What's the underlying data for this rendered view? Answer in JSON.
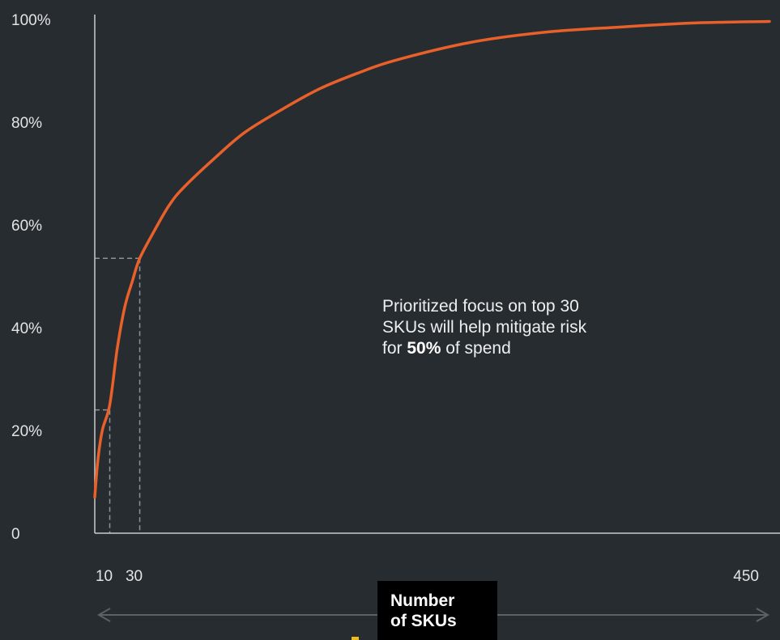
{
  "chart_data": {
    "type": "line",
    "title": "",
    "xlabel_lines": [
      "Number",
      "of SKUs"
    ],
    "ylabel": "",
    "xlim": [
      0,
      450
    ],
    "ylim": [
      0,
      100
    ],
    "y_ticks": [
      {
        "value": 0,
        "label": "0"
      },
      {
        "value": 20,
        "label": "20%"
      },
      {
        "value": 40,
        "label": "40%"
      },
      {
        "value": 60,
        "label": "60%"
      },
      {
        "value": 80,
        "label": "80%"
      },
      {
        "value": 100,
        "label": "100%"
      }
    ],
    "x_ticks": [
      {
        "value": 10,
        "label": "10"
      },
      {
        "value": 30,
        "label": "30"
      },
      {
        "value": 450,
        "label": "450"
      }
    ],
    "series": [
      {
        "color": "#e8602a",
        "x": [
          0,
          2,
          5,
          10,
          15,
          20,
          25,
          30,
          40,
          50,
          60,
          80,
          100,
          125,
          150,
          175,
          200,
          250,
          300,
          350,
          400,
          450
        ],
        "y": [
          7,
          14,
          20,
          25,
          36,
          44,
          49,
          53.5,
          59,
          64,
          67.5,
          73,
          78,
          82.5,
          86.5,
          89.5,
          92,
          95.5,
          97.5,
          98.5,
          99.3,
          99.6
        ]
      }
    ],
    "reference_lines": [
      {
        "x": 10,
        "y": 24
      },
      {
        "x": 30,
        "y": 53.5
      }
    ],
    "grid": false,
    "annotation": {
      "lines": [
        "Prioritized focus on top 30",
        "SKUs will help mitigate risk"
      ],
      "last_line_prefix": "for ",
      "last_line_bold": "50%",
      "last_line_suffix": " of spend"
    },
    "colors": {
      "background": "#272c30",
      "line": "#e8602a",
      "axis": "#c9ccce",
      "reference": "#8e9296",
      "range_arrow": "#5c6165",
      "label_box": "#000000",
      "marker": "#f2b81c"
    }
  }
}
